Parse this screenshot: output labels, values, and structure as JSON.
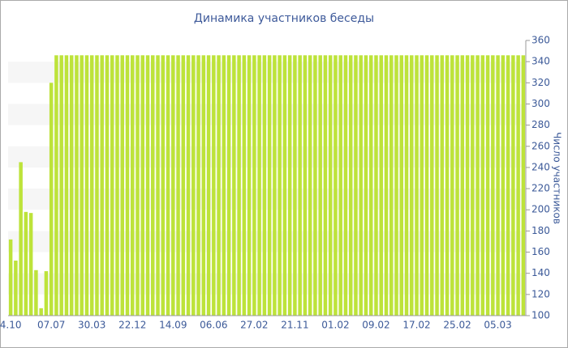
{
  "chart_data": {
    "type": "bar",
    "title": "Динамика участников беседы",
    "y_label": "Число участников",
    "categories": [
      "4.10",
      null,
      null,
      null,
      null,
      null,
      null,
      null,
      "07.07",
      null,
      null,
      null,
      null,
      null,
      null,
      null,
      "30.03",
      null,
      null,
      null,
      null,
      null,
      null,
      null,
      "22.12",
      null,
      null,
      null,
      null,
      null,
      null,
      null,
      "14.09",
      null,
      null,
      null,
      null,
      null,
      null,
      null,
      "06.06",
      null,
      null,
      null,
      null,
      null,
      null,
      null,
      "27.02",
      null,
      null,
      null,
      null,
      null,
      null,
      null,
      "21.11",
      null,
      null,
      null,
      null,
      null,
      null,
      null,
      "01.02",
      null,
      null,
      null,
      null,
      null,
      null,
      null,
      "09.02",
      null,
      null,
      null,
      null,
      null,
      null,
      null,
      "17.02",
      null,
      null,
      null,
      null,
      null,
      null,
      null,
      "25.02",
      null,
      null,
      null,
      null,
      null,
      null,
      null,
      "05.03",
      null,
      null,
      null,
      null,
      null
    ],
    "values": [
      172,
      152,
      245,
      198,
      197,
      143,
      107,
      142,
      320,
      346,
      346,
      346,
      346,
      346,
      346,
      346,
      346,
      346,
      346,
      346,
      346,
      346,
      346,
      346,
      346,
      346,
      346,
      346,
      346,
      346,
      346,
      346,
      346,
      346,
      346,
      346,
      346,
      346,
      346,
      346,
      346,
      346,
      346,
      346,
      346,
      346,
      346,
      346,
      346,
      346,
      346,
      346,
      346,
      346,
      346,
      346,
      346,
      346,
      346,
      346,
      346,
      346,
      346,
      346,
      346,
      346,
      346,
      346,
      346,
      346,
      346,
      346,
      346,
      346,
      346,
      346,
      346,
      346,
      346,
      346,
      346,
      346,
      346,
      346,
      346,
      346,
      346,
      346,
      346,
      346,
      346,
      346,
      346,
      346,
      346,
      346,
      346,
      346,
      346,
      346,
      346,
      346
    ],
    "color": "#bde33a",
    "ylim": [
      100,
      360
    ],
    "yticks": [
      100,
      120,
      140,
      160,
      180,
      200,
      220,
      240,
      260,
      280,
      300,
      320,
      340,
      360
    ],
    "grid": true
  }
}
